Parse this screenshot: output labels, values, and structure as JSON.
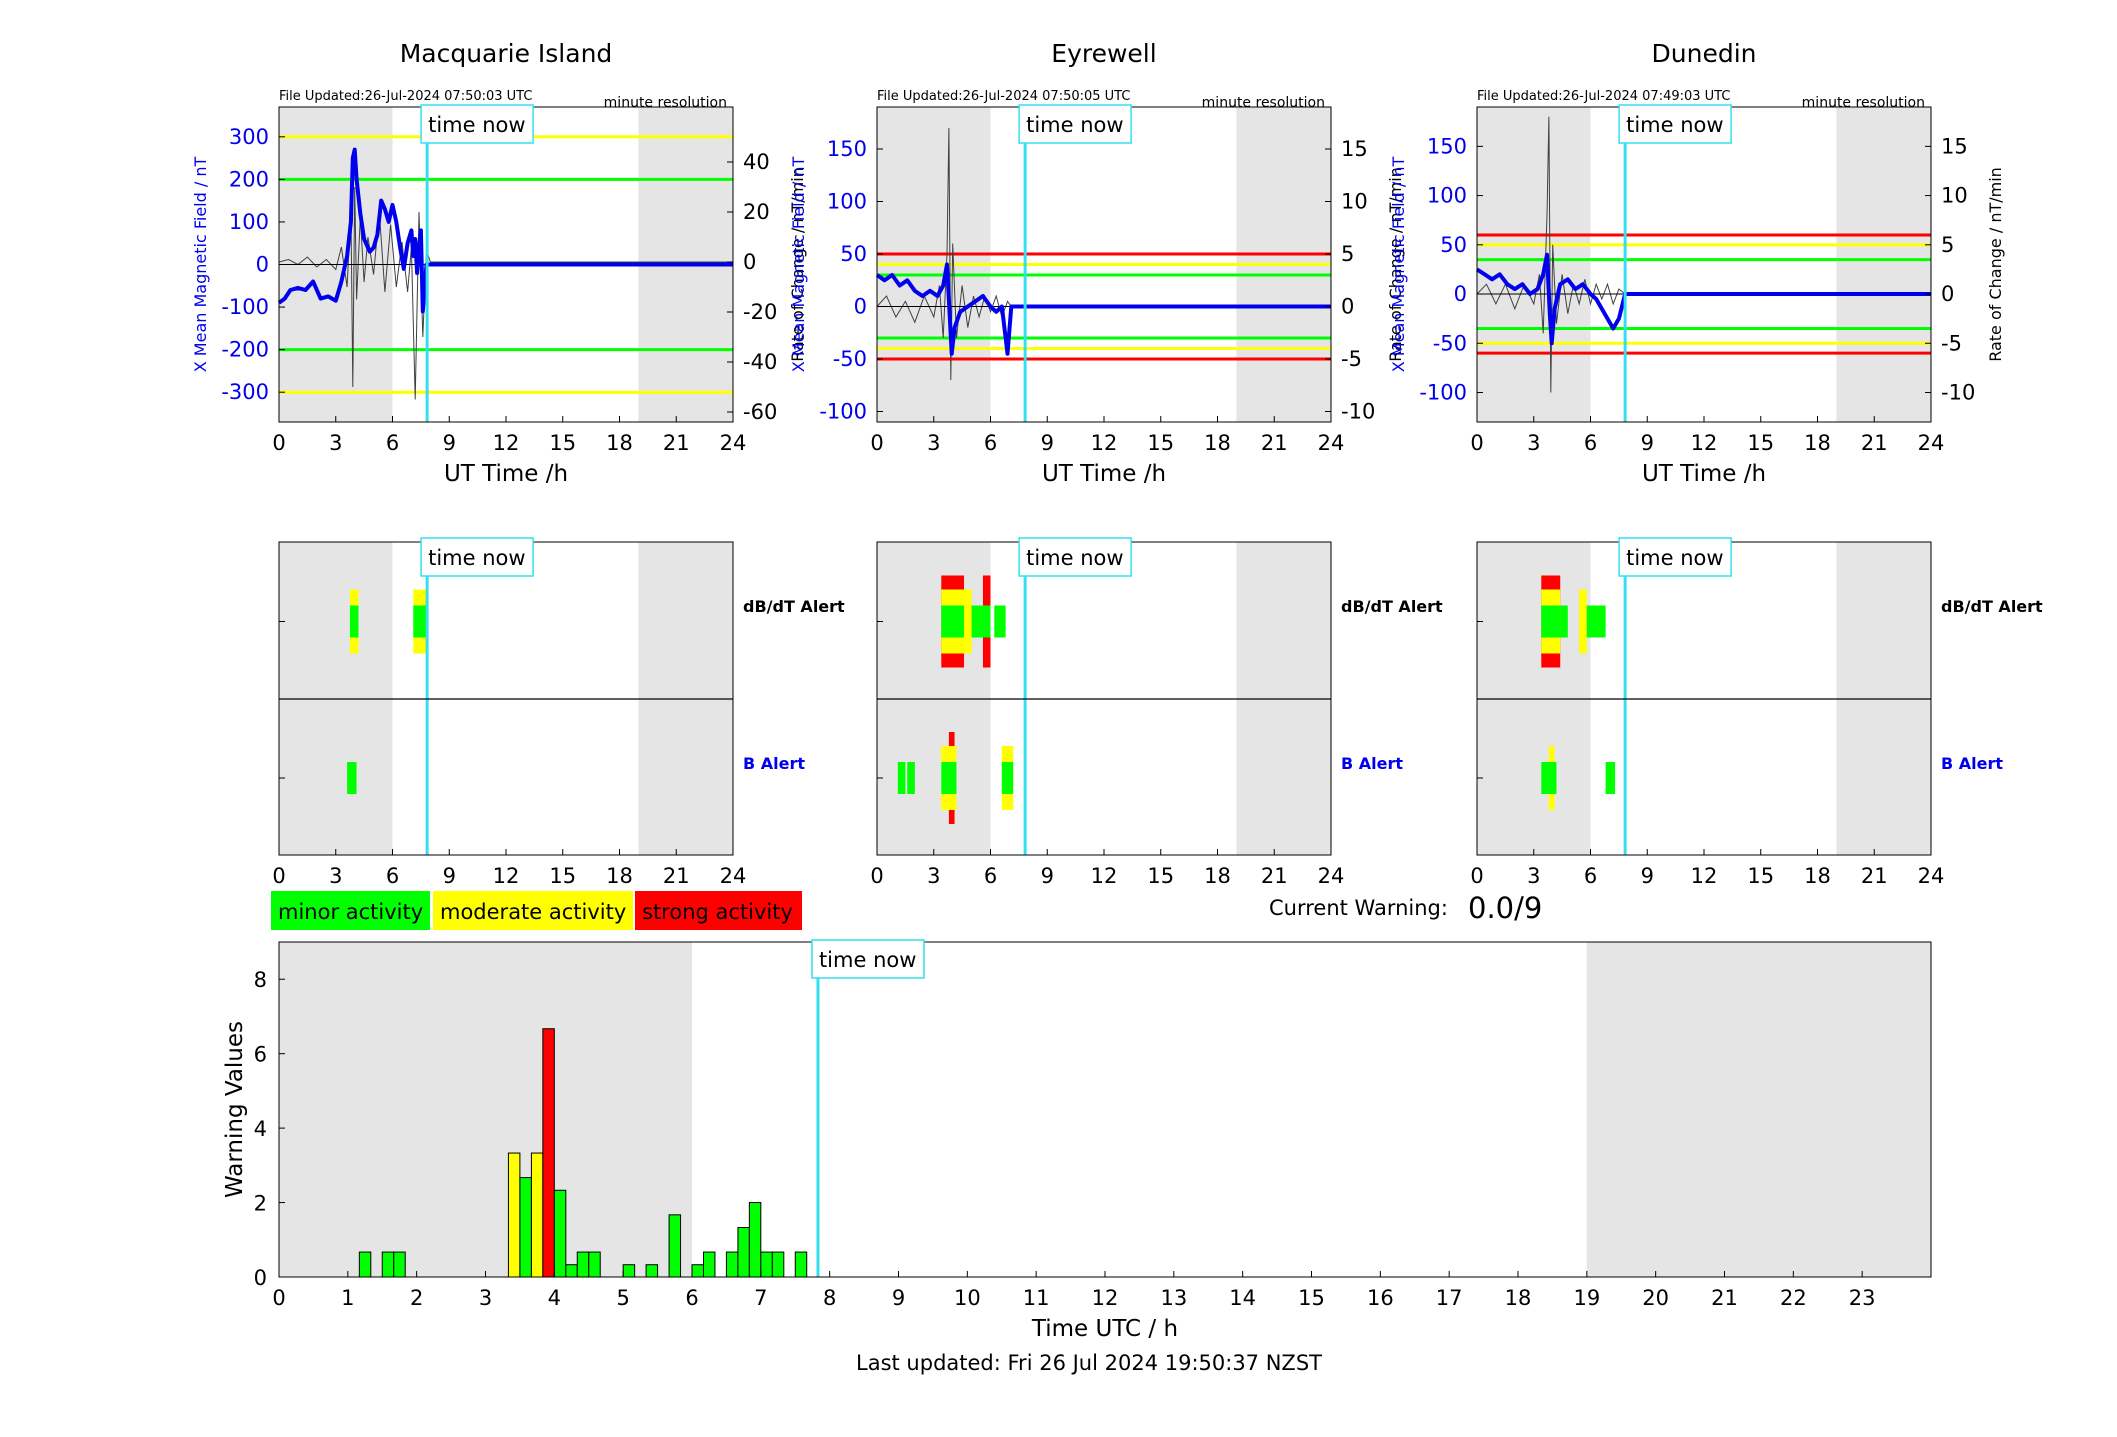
{
  "page": {
    "time_now_label": "time now",
    "last_updated": "Last updated: Fri 26 Jul 2024 19:50:37 NZST",
    "current_warning_label": "Current Warning:",
    "current_warning_value": "0.0/9",
    "alert_labels": {
      "dbdt": "dB/dT Alert",
      "b": "B Alert"
    },
    "legend": [
      {
        "label": "minor activity",
        "color": "#00ff00"
      },
      {
        "label": "moderate activity",
        "color": "#ffff00"
      },
      {
        "label": "strong activity",
        "color": "#ff0000"
      }
    ],
    "colors": {
      "field_line": "#0000ee",
      "rate_line": "#404040",
      "time_now_line": "#33e0f0",
      "night_shade": "#e5e5e5",
      "minor": "#00ff00",
      "moderate": "#ffff00",
      "strong": "#ff0000"
    }
  },
  "chart_data": [
    {
      "type": "line",
      "station": "Macquarie Island",
      "file_updated": "File Updated:26-Jul-2024 07:50:03 UTC",
      "resolution": "minute resolution",
      "xlabel": "UT Time /h",
      "ylabel_left": "X Mean Magnetic Field / nT",
      "ylabel_right": "Rate of Change / nT/min",
      "xlim": [
        0,
        24
      ],
      "ylim_left": [
        -370,
        370
      ],
      "yticks_left": [
        -300,
        -200,
        -100,
        0,
        100,
        200,
        300
      ],
      "ylim_right": [
        -64,
        62
      ],
      "yticks_right": [
        -60,
        -40,
        -20,
        0,
        20,
        40
      ],
      "xticks": [
        0,
        3,
        6,
        9,
        12,
        15,
        18,
        21,
        24
      ],
      "time_now": 7.83,
      "night_shading": [
        [
          0,
          6
        ],
        [
          19,
          24
        ]
      ],
      "thresholds": [
        {
          "value": 300,
          "color": "#ffff00"
        },
        {
          "value": -300,
          "color": "#ffff00"
        },
        {
          "value": 200,
          "color": "#00ff00"
        },
        {
          "value": -200,
          "color": "#00ff00"
        }
      ],
      "field": {
        "x": [
          0,
          0.3,
          0.6,
          1,
          1.4,
          1.8,
          2.2,
          2.6,
          3,
          3.3,
          3.6,
          3.8,
          3.9,
          4.0,
          4.1,
          4.3,
          4.5,
          4.8,
          5.0,
          5.2,
          5.4,
          5.6,
          5.8,
          6.0,
          6.2,
          6.4,
          6.6,
          6.8,
          7.0,
          7.1,
          7.2,
          7.3,
          7.4,
          7.5,
          7.6,
          7.8,
          8.0,
          24
        ],
        "y": [
          -90,
          -80,
          -60,
          -55,
          -60,
          -40,
          -80,
          -75,
          -85,
          -40,
          20,
          100,
          250,
          270,
          200,
          120,
          60,
          30,
          40,
          70,
          150,
          130,
          100,
          140,
          100,
          40,
          -10,
          50,
          80,
          20,
          60,
          -20,
          40,
          80,
          -110,
          0,
          0,
          0
        ]
      },
      "rate_of_change": {
        "x": [
          0,
          0.5,
          1,
          1.5,
          2,
          2.5,
          3,
          3.3,
          3.6,
          3.8,
          3.9,
          4.0,
          4.1,
          4.3,
          4.5,
          4.7,
          5.0,
          5.3,
          5.6,
          5.9,
          6.2,
          6.5,
          6.8,
          7.0,
          7.2,
          7.4,
          7.6,
          7.8,
          8.0,
          24
        ],
        "y": [
          0,
          1,
          -1,
          2,
          -2,
          1,
          -3,
          6,
          -10,
          22,
          -50,
          30,
          -15,
          18,
          -8,
          10,
          -5,
          20,
          -12,
          15,
          -10,
          8,
          -12,
          6,
          -55,
          20,
          -30,
          5,
          0,
          0
        ]
      }
    },
    {
      "type": "line",
      "station": "Eyrewell",
      "file_updated": "File Updated:26-Jul-2024 07:50:05 UTC",
      "resolution": "minute resolution",
      "xlabel": "UT Time /h",
      "ylabel_left": "X Mean Magnetic Field / nT",
      "ylabel_right": "Rate of Change / nT/min",
      "xlim": [
        0,
        24
      ],
      "ylim_left": [
        -110,
        190
      ],
      "yticks_left": [
        -100,
        -50,
        0,
        50,
        100,
        150
      ],
      "ylim_right": [
        -11,
        19
      ],
      "yticks_right": [
        -10,
        -5,
        0,
        5,
        10,
        15
      ],
      "xticks": [
        0,
        3,
        6,
        9,
        12,
        15,
        18,
        21,
        24
      ],
      "time_now": 7.83,
      "night_shading": [
        [
          0,
          6
        ],
        [
          19,
          24
        ]
      ],
      "thresholds": [
        {
          "value": 50,
          "color": "#ff0000"
        },
        {
          "value": -50,
          "color": "#ff0000"
        },
        {
          "value": 40,
          "color": "#ffff00"
        },
        {
          "value": -40,
          "color": "#ffff00"
        },
        {
          "value": 30,
          "color": "#00ff00"
        },
        {
          "value": -30,
          "color": "#00ff00"
        }
      ],
      "field": {
        "x": [
          0,
          0.4,
          0.8,
          1.2,
          1.6,
          2.0,
          2.4,
          2.8,
          3.2,
          3.5,
          3.7,
          3.85,
          3.95,
          4.1,
          4.4,
          4.8,
          5.2,
          5.6,
          6.0,
          6.3,
          6.6,
          6.9,
          7.1,
          7.83,
          24
        ],
        "y": [
          30,
          25,
          30,
          20,
          25,
          15,
          10,
          15,
          10,
          20,
          40,
          -10,
          -45,
          -20,
          -5,
          0,
          5,
          10,
          0,
          -5,
          0,
          -45,
          0,
          0,
          0
        ]
      },
      "rate_of_change": {
        "x": [
          0,
          0.5,
          1,
          1.5,
          2,
          2.5,
          3,
          3.3,
          3.5,
          3.7,
          3.8,
          3.9,
          4.0,
          4.2,
          4.5,
          4.8,
          5.1,
          5.4,
          5.7,
          6.0,
          6.3,
          6.6,
          6.9,
          7.1,
          24
        ],
        "y": [
          0,
          1,
          -1,
          0.5,
          -1.5,
          1,
          -1,
          2,
          -3,
          5,
          17,
          -7,
          6,
          -3,
          2,
          -2,
          1,
          -1,
          1,
          -0.5,
          1,
          -1,
          0.5,
          0,
          0
        ]
      }
    },
    {
      "type": "line",
      "station": "Dunedin",
      "file_updated": "File Updated:26-Jul-2024 07:49:03 UTC",
      "resolution": "minute resolution",
      "xlabel": "UT Time /h",
      "ylabel_left": "X Mean Magnetic Field / nT",
      "ylabel_right": "Rate of Change / nT/min",
      "xlim": [
        0,
        24
      ],
      "ylim_left": [
        -130,
        190
      ],
      "yticks_left": [
        -100,
        -50,
        0,
        50,
        100,
        150
      ],
      "ylim_right": [
        -13,
        19
      ],
      "yticks_right": [
        -10,
        -5,
        0,
        5,
        10,
        15
      ],
      "xticks": [
        0,
        3,
        6,
        9,
        12,
        15,
        18,
        21,
        24
      ],
      "time_now": 7.83,
      "night_shading": [
        [
          0,
          6
        ],
        [
          19,
          24
        ]
      ],
      "thresholds": [
        {
          "value": 60,
          "color": "#ff0000"
        },
        {
          "value": -60,
          "color": "#ff0000"
        },
        {
          "value": 50,
          "color": "#ffff00"
        },
        {
          "value": -50,
          "color": "#ffff00"
        },
        {
          "value": 35,
          "color": "#00ff00"
        },
        {
          "value": -35,
          "color": "#00ff00"
        }
      ],
      "field": {
        "x": [
          0,
          0.4,
          0.8,
          1.2,
          1.6,
          2.0,
          2.4,
          2.8,
          3.2,
          3.5,
          3.7,
          3.85,
          3.95,
          4.1,
          4.4,
          4.8,
          5.2,
          5.6,
          6.0,
          6.3,
          6.6,
          6.9,
          7.2,
          7.5,
          7.83,
          24
        ],
        "y": [
          25,
          20,
          15,
          20,
          10,
          5,
          10,
          0,
          5,
          20,
          40,
          -20,
          -50,
          -15,
          10,
          15,
          5,
          10,
          0,
          -5,
          -15,
          -25,
          -35,
          -25,
          0,
          0
        ]
      },
      "rate_of_change": {
        "x": [
          0,
          0.5,
          1,
          1.5,
          2,
          2.5,
          3,
          3.3,
          3.5,
          3.7,
          3.8,
          3.9,
          4.0,
          4.2,
          4.5,
          4.8,
          5.1,
          5.4,
          5.7,
          6.0,
          6.3,
          6.6,
          6.9,
          7.2,
          7.5,
          7.83,
          24
        ],
        "y": [
          0,
          1,
          -1,
          1,
          -1.5,
          1,
          -1,
          2,
          -4,
          8,
          18,
          -10,
          5,
          -3,
          2,
          -2,
          1,
          -1,
          1.5,
          -1,
          1,
          -0.5,
          1,
          -1,
          0.5,
          0,
          0
        ]
      }
    },
    {
      "type": "heatmap",
      "station": "Macquarie Island",
      "xlim": [
        0,
        24
      ],
      "xticks": [
        0,
        3,
        6,
        9,
        12,
        15,
        18,
        21,
        24
      ],
      "time_now": 7.83,
      "night_shading": [
        [
          0,
          6
        ],
        [
          19,
          24
        ]
      ],
      "dbdt_alerts": [
        {
          "x": [
            3.75,
            4.2
          ],
          "level": "moderate"
        },
        {
          "x": [
            3.75,
            4.2
          ],
          "level": "minor"
        },
        {
          "x": [
            7.1,
            7.8
          ],
          "level": "moderate"
        },
        {
          "x": [
            7.1,
            7.8
          ],
          "level": "minor"
        }
      ],
      "b_alerts": [
        {
          "x": [
            3.6,
            4.1
          ],
          "level": "minor"
        }
      ]
    },
    {
      "type": "heatmap",
      "station": "Eyrewell",
      "xlim": [
        0,
        24
      ],
      "xticks": [
        0,
        3,
        6,
        9,
        12,
        15,
        18,
        21,
        24
      ],
      "time_now": 7.83,
      "night_shading": [
        [
          0,
          6
        ],
        [
          19,
          24
        ]
      ],
      "dbdt_alerts": [
        {
          "x": [
            3.4,
            4.6
          ],
          "level": "strong"
        },
        {
          "x": [
            3.4,
            4.6
          ],
          "level": "moderate"
        },
        {
          "x": [
            3.4,
            4.6
          ],
          "level": "minor"
        },
        {
          "x": [
            4.6,
            5.0
          ],
          "level": "moderate"
        },
        {
          "x": [
            5.0,
            5.6
          ],
          "level": "minor"
        },
        {
          "x": [
            5.6,
            6.0
          ],
          "level": "strong"
        },
        {
          "x": [
            5.6,
            6.0
          ],
          "level": "minor"
        },
        {
          "x": [
            6.2,
            6.8
          ],
          "level": "minor"
        }
      ],
      "b_alerts": [
        {
          "x": [
            1.1,
            1.5
          ],
          "level": "minor"
        },
        {
          "x": [
            1.6,
            2.0
          ],
          "level": "minor"
        },
        {
          "x": [
            3.4,
            4.2
          ],
          "level": "moderate"
        },
        {
          "x": [
            3.4,
            4.2
          ],
          "level": "minor"
        },
        {
          "x": [
            3.8,
            4.1
          ],
          "level": "strong"
        },
        {
          "x": [
            6.6,
            7.2
          ],
          "level": "moderate"
        },
        {
          "x": [
            6.6,
            7.2
          ],
          "level": "minor"
        }
      ]
    },
    {
      "type": "heatmap",
      "station": "Dunedin",
      "xlim": [
        0,
        24
      ],
      "xticks": [
        0,
        3,
        6,
        9,
        12,
        15,
        18,
        21,
        24
      ],
      "time_now": 7.83,
      "night_shading": [
        [
          0,
          6
        ],
        [
          19,
          24
        ]
      ],
      "dbdt_alerts": [
        {
          "x": [
            3.4,
            4.4
          ],
          "level": "strong"
        },
        {
          "x": [
            3.4,
            4.4
          ],
          "level": "moderate"
        },
        {
          "x": [
            3.4,
            4.4
          ],
          "level": "minor"
        },
        {
          "x": [
            4.4,
            4.8
          ],
          "level": "minor"
        },
        {
          "x": [
            5.4,
            5.8
          ],
          "level": "moderate"
        },
        {
          "x": [
            5.8,
            6.8
          ],
          "level": "minor"
        }
      ],
      "b_alerts": [
        {
          "x": [
            3.4,
            4.2
          ],
          "level": "minor"
        },
        {
          "x": [
            3.8,
            4.1
          ],
          "level": "moderate"
        },
        {
          "x": [
            6.8,
            7.3
          ],
          "level": "minor"
        }
      ]
    },
    {
      "type": "bar",
      "xlabel": "Time UTC / h",
      "ylabel": "Warning Values",
      "xlim": [
        0,
        24
      ],
      "ylim": [
        0,
        9
      ],
      "xticks": [
        0,
        1,
        2,
        3,
        4,
        5,
        6,
        7,
        8,
        9,
        10,
        11,
        12,
        13,
        14,
        15,
        16,
        17,
        18,
        19,
        20,
        21,
        22,
        23
      ],
      "yticks": [
        0,
        2,
        4,
        6,
        8
      ],
      "time_now": 7.83,
      "night_shading": [
        [
          0,
          6
        ],
        [
          19,
          24
        ]
      ],
      "bar_width_h": 0.1667,
      "bars": [
        {
          "x": 1.167,
          "value": 0.67,
          "level": "minor"
        },
        {
          "x": 1.5,
          "value": 0.67,
          "level": "minor"
        },
        {
          "x": 1.667,
          "value": 0.67,
          "level": "minor"
        },
        {
          "x": 3.333,
          "value": 3.33,
          "level": "moderate"
        },
        {
          "x": 3.5,
          "value": 2.67,
          "level": "minor"
        },
        {
          "x": 3.667,
          "value": 3.33,
          "level": "moderate"
        },
        {
          "x": 3.833,
          "value": 6.67,
          "level": "strong"
        },
        {
          "x": 4.0,
          "value": 2.33,
          "level": "minor"
        },
        {
          "x": 4.167,
          "value": 0.33,
          "level": "minor"
        },
        {
          "x": 4.333,
          "value": 0.67,
          "level": "minor"
        },
        {
          "x": 4.5,
          "value": 0.67,
          "level": "minor"
        },
        {
          "x": 5.0,
          "value": 0.33,
          "level": "minor"
        },
        {
          "x": 5.333,
          "value": 0.33,
          "level": "minor"
        },
        {
          "x": 5.667,
          "value": 1.67,
          "level": "minor"
        },
        {
          "x": 6.0,
          "value": 0.33,
          "level": "minor"
        },
        {
          "x": 6.167,
          "value": 0.67,
          "level": "minor"
        },
        {
          "x": 6.5,
          "value": 0.67,
          "level": "minor"
        },
        {
          "x": 6.667,
          "value": 1.33,
          "level": "minor"
        },
        {
          "x": 6.833,
          "value": 2.0,
          "level": "minor"
        },
        {
          "x": 7.0,
          "value": 0.67,
          "level": "minor"
        },
        {
          "x": 7.167,
          "value": 0.67,
          "level": "minor"
        },
        {
          "x": 7.5,
          "value": 0.67,
          "level": "minor"
        }
      ]
    }
  ]
}
